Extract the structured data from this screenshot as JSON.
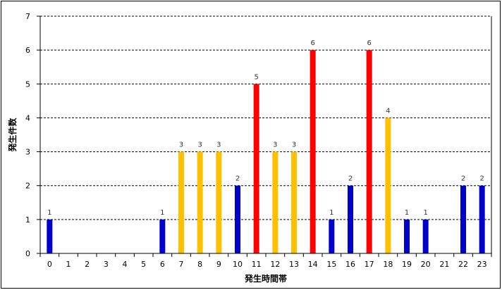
{
  "chart_data": {
    "type": "bar",
    "title": "",
    "xlabel": "発生時間帯",
    "ylabel": "発生件数",
    "ylim": [
      0,
      7
    ],
    "yticks": [
      0,
      1,
      2,
      3,
      4,
      5,
      6,
      7
    ],
    "grid": "horizontal-dashed",
    "legend": "none",
    "categories": [
      "0",
      "1",
      "2",
      "3",
      "4",
      "5",
      "6",
      "7",
      "8",
      "9",
      "10",
      "11",
      "12",
      "13",
      "14",
      "15",
      "16",
      "17",
      "18",
      "19",
      "20",
      "21",
      "22",
      "23"
    ],
    "values": [
      1,
      0,
      0,
      0,
      0,
      0,
      1,
      3,
      3,
      3,
      2,
      5,
      3,
      3,
      6,
      1,
      2,
      6,
      4,
      1,
      1,
      0,
      2,
      2
    ],
    "data_labels": [
      "1",
      "",
      "",
      "",
      "",
      "",
      "1",
      "3",
      "3",
      "3",
      "2",
      "5",
      "3",
      "3",
      "6",
      "1",
      "2",
      "6",
      "4",
      "1",
      "1",
      "",
      "2",
      "2"
    ],
    "bar_color_levels": [
      "low",
      "",
      "",
      "",
      "",
      "",
      "low",
      "mid",
      "mid",
      "mid",
      "low",
      "high",
      "mid",
      "mid",
      "high",
      "low",
      "low",
      "high",
      "mid",
      "low",
      "low",
      "",
      "low",
      "low"
    ],
    "colors": {
      "low": "#0000cc",
      "mid": "#ffc000",
      "high": "#ff0000",
      "grid": "#000000",
      "axis": "#000000"
    }
  }
}
